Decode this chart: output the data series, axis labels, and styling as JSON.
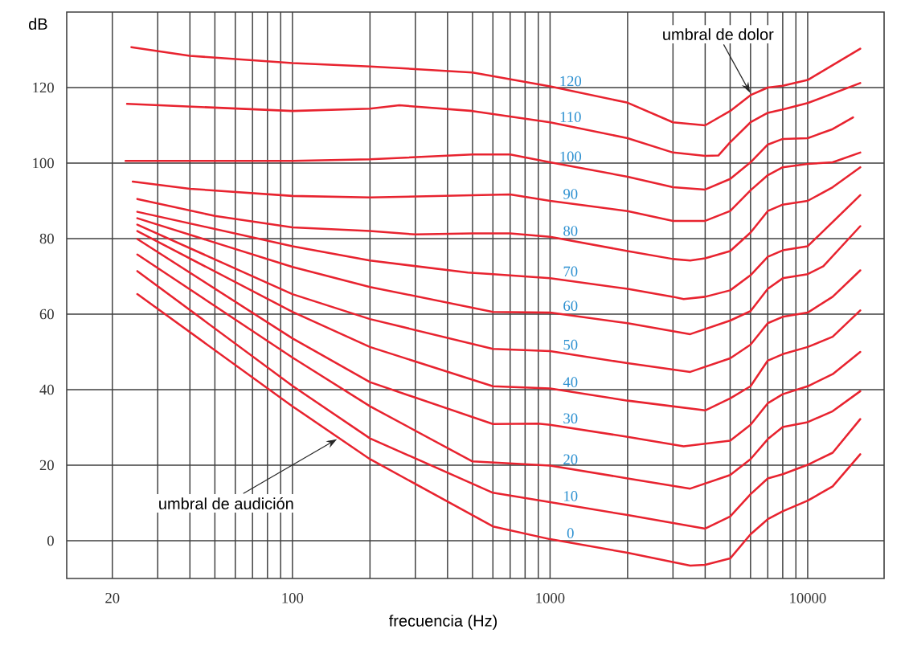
{
  "chart_data": {
    "type": "line",
    "xlabel": "frecuencia (Hz)",
    "ylabel": "dB",
    "log": "x",
    "grid": true,
    "xlim": [
      13.3,
      19800
    ],
    "ylim": [
      -10,
      140
    ],
    "xticks": [
      20,
      {
        "value": 30,
        "label": null
      },
      {
        "value": 40,
        "label": null
      },
      {
        "value": 50,
        "label": null
      },
      {
        "value": 60,
        "label": null
      },
      {
        "value": 70,
        "label": null
      },
      {
        "value": 80,
        "label": null
      },
      {
        "value": 90,
        "label": null
      },
      100,
      {
        "value": 200,
        "label": null
      },
      {
        "value": 300,
        "label": null
      },
      {
        "value": 400,
        "label": null
      },
      {
        "value": 500,
        "label": null
      },
      {
        "value": 600,
        "label": null
      },
      {
        "value": 700,
        "label": null
      },
      {
        "value": 800,
        "label": null
      },
      {
        "value": 900,
        "label": null
      },
      1000,
      {
        "value": 2000,
        "label": null
      },
      {
        "value": 3000,
        "label": null
      },
      {
        "value": 4000,
        "label": null
      },
      {
        "value": 5000,
        "label": null
      },
      {
        "value": 6000,
        "label": null
      },
      {
        "value": 7000,
        "label": null
      },
      {
        "value": 8000,
        "label": null
      },
      {
        "value": 9000,
        "label": null
      },
      10000
    ],
    "yticks": [
      0,
      20,
      40,
      60,
      80,
      100,
      120
    ],
    "series": [
      {
        "name": "120",
        "color": "#e8232f",
        "x": [
          23.7,
          40,
          100,
          200,
          500,
          1000,
          2000,
          3000,
          4000,
          5000,
          6000,
          7000,
          8000,
          10000,
          16000
        ],
        "values": [
          130.7,
          128.4,
          126.5,
          125.6,
          124,
          120.3,
          116,
          110.8,
          110,
          113.8,
          118,
          120,
          120.5,
          122,
          130.3
        ]
      },
      {
        "name": "110",
        "color": "#e8232f",
        "x": [
          22.8,
          100,
          200,
          260,
          500,
          1000,
          2000,
          3000,
          4000,
          4500,
          5000,
          6000,
          7000,
          8000,
          10000,
          16000
        ],
        "values": [
          115.7,
          113.8,
          114.4,
          115.3,
          113.8,
          110.8,
          106.6,
          102.8,
          101.9,
          102,
          105.5,
          110.8,
          113.3,
          114.2,
          115.9,
          121.2
        ]
      },
      {
        "name": "100",
        "color": "#e8232f",
        "x": [
          22.5,
          100,
          200,
          500,
          700,
          1000,
          2000,
          3000,
          4000,
          5000,
          6000,
          7000,
          8000,
          10000,
          12500,
          15000
        ],
        "values": [
          100.6,
          100.6,
          101,
          102.3,
          102.3,
          100.2,
          96.4,
          93.6,
          93,
          95.8,
          100.2,
          104.9,
          106.4,
          106.6,
          109,
          112.1
        ]
      },
      {
        "name": "90",
        "color": "#e8232f",
        "x": [
          24,
          40,
          100,
          200,
          500,
          700,
          1000,
          2000,
          3000,
          4000,
          5000,
          6000,
          7000,
          8000,
          10000,
          12500,
          16000
        ],
        "values": [
          95.1,
          93.2,
          91.3,
          90.9,
          91.5,
          91.7,
          90,
          87.3,
          84.7,
          84.7,
          87.3,
          92.8,
          96.8,
          98.9,
          99.8,
          100.2,
          102.8
        ]
      },
      {
        "name": "80",
        "color": "#e8232f",
        "x": [
          25,
          50,
          100,
          200,
          300,
          500,
          700,
          1000,
          2000,
          3000,
          3500,
          4000,
          5000,
          6000,
          7000,
          8000,
          10000,
          12500,
          16000
        ],
        "values": [
          90.5,
          86,
          83,
          82,
          81.1,
          81.4,
          81.4,
          80.5,
          76.7,
          74.6,
          74.2,
          74.8,
          76.7,
          81.6,
          87.3,
          89,
          90,
          93.6,
          98.9
        ]
      },
      {
        "name": "70",
        "color": "#e8232f",
        "x": [
          25,
          100,
          200,
          480,
          600,
          1000,
          2000,
          3000,
          3300,
          4000,
          5000,
          6000,
          7000,
          8000,
          10000,
          16000
        ],
        "values": [
          87.1,
          78,
          74.2,
          71,
          70.6,
          69.5,
          66.7,
          64.6,
          64,
          64.6,
          66.3,
          70.3,
          75.2,
          76.9,
          78,
          91.5
        ]
      },
      {
        "name": "60",
        "color": "#e8232f",
        "x": [
          25,
          100,
          200,
          600,
          1000,
          2000,
          3500,
          5000,
          6000,
          7000,
          8000,
          10000,
          11500,
          16000
        ],
        "values": [
          85.4,
          72.5,
          67.2,
          60.6,
          60.4,
          57.6,
          54.7,
          58.3,
          60.8,
          66.7,
          69.5,
          70.6,
          72.7,
          83.3
        ]
      },
      {
        "name": "50",
        "color": "#e8232f",
        "x": [
          25,
          100,
          200,
          600,
          1000,
          2000,
          3500,
          5000,
          6000,
          7000,
          8000,
          10000,
          12500,
          16000
        ],
        "values": [
          83.7,
          65.3,
          58.7,
          50.8,
          50.2,
          47,
          44.7,
          48.3,
          51.9,
          57.6,
          59.3,
          60.4,
          64.6,
          71.6
        ]
      },
      {
        "name": "40",
        "color": "#e8232f",
        "x": [
          25,
          100,
          200,
          600,
          1000,
          2000,
          4000,
          5000,
          6000,
          7000,
          8000,
          10000,
          12500,
          16000
        ],
        "values": [
          82,
          60.6,
          51.3,
          40.9,
          40.3,
          37.1,
          34.5,
          37.7,
          40.9,
          47.7,
          49.4,
          51.3,
          54,
          61
        ]
      },
      {
        "name": "30",
        "color": "#e8232f",
        "x": [
          25,
          100,
          200,
          600,
          900,
          1000,
          2000,
          3300,
          5000,
          6000,
          7000,
          8000,
          10000,
          12500,
          16000
        ],
        "values": [
          79.9,
          53.6,
          42,
          30.9,
          31,
          30.7,
          27.5,
          25,
          26.5,
          30.7,
          36.4,
          38.8,
          40.9,
          44.1,
          50
        ]
      },
      {
        "name": "20",
        "color": "#e8232f",
        "x": [
          25,
          100,
          200,
          500,
          1000,
          2000,
          3500,
          5000,
          6000,
          7000,
          8000,
          10000,
          12500,
          16000
        ],
        "values": [
          75.8,
          48.5,
          35.6,
          21,
          19.9,
          16.5,
          13.8,
          17.4,
          21.6,
          26.9,
          30.1,
          31.4,
          34.3,
          39.6
        ]
      },
      {
        "name": "10",
        "color": "#e8232f",
        "x": [
          25,
          100,
          200,
          600,
          1000,
          2000,
          4000,
          5000,
          6000,
          7000,
          8000,
          10000,
          12500,
          16000
        ],
        "values": [
          71.4,
          41,
          27.1,
          12.7,
          10.2,
          6.8,
          3.2,
          6.4,
          12.3,
          16.5,
          17.6,
          20.1,
          23.3,
          32.2
        ]
      },
      {
        "name": "0",
        "color": "#e8232f",
        "x": [
          25,
          100,
          200,
          600,
          1000,
          2000,
          3500,
          4000,
          5000,
          6000,
          7000,
          8000,
          10000,
          12500,
          16000
        ],
        "values": [
          65.3,
          35.6,
          21.6,
          3.8,
          0.4,
          -3.2,
          -6.6,
          -6.4,
          -4.7,
          1.7,
          5.7,
          7.8,
          10.6,
          14.4,
          22.9
        ]
      }
    ],
    "annotations": [
      {
        "text": "umbral de dolor",
        "x": 5980,
        "y": 118.6
      },
      {
        "text": "umbral de audición",
        "x": 149,
        "y": 26.9
      }
    ]
  }
}
